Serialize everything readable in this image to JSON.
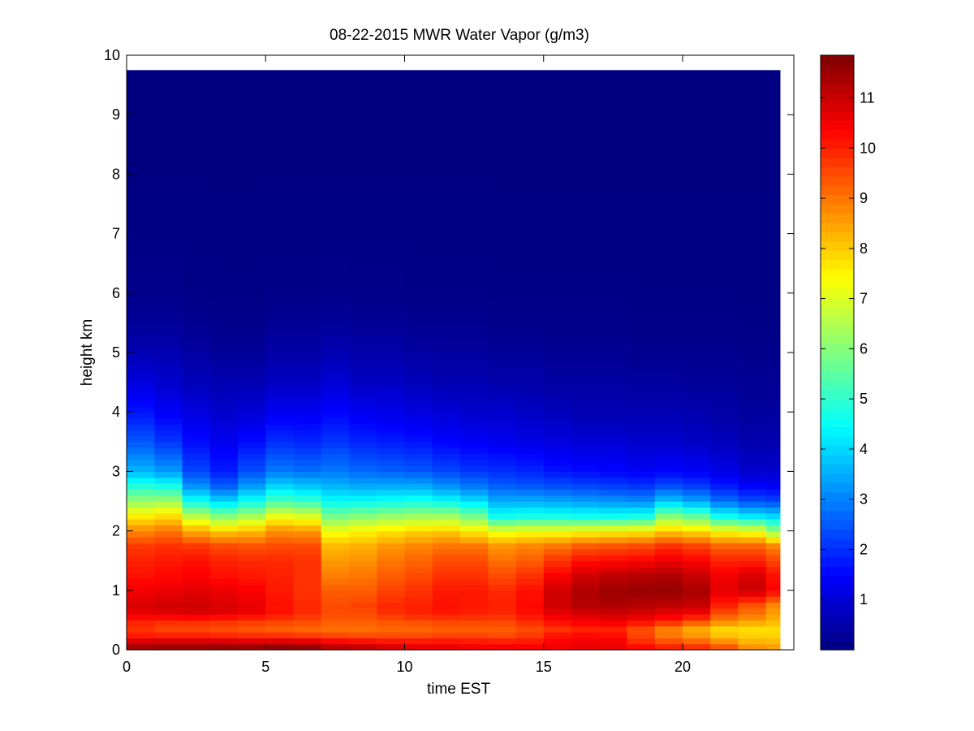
{
  "chart_data": {
    "type": "heatmap",
    "title": "08-22-2015 MWR Water Vapor (g/m3)",
    "xlabel": "time EST",
    "ylabel": "height km",
    "xlim": [
      0,
      24
    ],
    "ylim": [
      0,
      10
    ],
    "x_ticks": [
      "0",
      "5",
      "10",
      "15",
      "20"
    ],
    "y_ticks": [
      "0",
      "1",
      "2",
      "3",
      "4",
      "5",
      "6",
      "7",
      "8",
      "9",
      "10"
    ],
    "colorbar": {
      "colormap": "jet",
      "range": [
        0,
        11.85
      ],
      "ticks": [
        "1",
        "2",
        "3",
        "4",
        "5",
        "6",
        "7",
        "8",
        "9",
        "10",
        "11"
      ]
    },
    "data_extent": {
      "time": [
        0,
        23.5
      ],
      "height": [
        0,
        9.75
      ]
    },
    "time_hours": [
      0,
      1,
      2,
      3,
      4,
      5,
      6,
      7,
      8,
      9,
      10,
      11,
      12,
      13,
      14,
      15,
      16,
      17,
      18,
      19,
      20,
      21,
      22,
      23
    ],
    "profile_heights_km": [
      0,
      0.1,
      0.2,
      0.35,
      0.5,
      0.6,
      0.75,
      1.0,
      1.25,
      1.5,
      1.75,
      2.0,
      2.25,
      2.5,
      2.75,
      3.0,
      3.5,
      4.0,
      4.5,
      5.0,
      5.5,
      6.0,
      7.0,
      8.0,
      9.75
    ],
    "profiles_g_m3": [
      [
        11.5,
        11.3,
        10.2,
        9.8,
        10.0,
        10.6,
        10.8,
        10.5,
        10.2,
        10.0,
        9.7,
        8.8,
        7.6,
        6.2,
        4.9,
        3.6,
        2.5,
        1.7,
        1.1,
        0.6,
        0.3,
        0.15,
        0.05,
        0.02,
        0.0
      ],
      [
        11.6,
        11.4,
        10.2,
        9.6,
        9.9,
        10.7,
        10.9,
        10.6,
        10.3,
        10.1,
        9.8,
        9.0,
        7.8,
        6.3,
        4.7,
        3.3,
        2.1,
        1.4,
        0.9,
        0.6,
        0.3,
        0.15,
        0.05,
        0.02,
        0.0
      ],
      [
        11.6,
        11.4,
        10.2,
        9.6,
        9.9,
        10.8,
        10.9,
        10.7,
        10.4,
        10.2,
        9.7,
        8.4,
        6.6,
        4.6,
        3.2,
        2.3,
        1.6,
        1.1,
        0.7,
        0.4,
        0.2,
        0.1,
        0.05,
        0.02,
        0.0
      ],
      [
        11.7,
        11.4,
        10.1,
        9.5,
        9.8,
        10.7,
        10.8,
        10.6,
        10.2,
        10.0,
        9.5,
        8.0,
        6.0,
        4.0,
        2.6,
        1.8,
        1.3,
        0.9,
        0.6,
        0.3,
        0.15,
        0.08,
        0.04,
        0.02,
        0.0
      ],
      [
        11.7,
        11.3,
        10.0,
        9.4,
        9.7,
        10.5,
        10.6,
        10.4,
        10.1,
        9.9,
        9.4,
        8.2,
        6.4,
        4.6,
        3.3,
        2.4,
        1.6,
        1.0,
        0.6,
        0.3,
        0.15,
        0.08,
        0.04,
        0.02,
        0.0
      ],
      [
        11.8,
        11.4,
        10.0,
        9.3,
        9.6,
        10.2,
        10.2,
        10.1,
        10.0,
        9.9,
        9.5,
        8.7,
        7.2,
        5.3,
        4.0,
        2.9,
        2.0,
        1.3,
        0.8,
        0.45,
        0.25,
        0.1,
        0.05,
        0.02,
        0.0
      ],
      [
        11.8,
        11.3,
        9.9,
        9.2,
        9.5,
        9.9,
        9.9,
        9.8,
        9.8,
        9.8,
        9.5,
        8.6,
        7.0,
        5.1,
        3.8,
        2.8,
        1.9,
        1.3,
        0.8,
        0.45,
        0.25,
        0.1,
        0.05,
        0.02,
        0.0
      ],
      [
        11.4,
        10.9,
        9.7,
        9.1,
        9.3,
        9.5,
        9.5,
        9.3,
        8.9,
        8.6,
        8.2,
        7.3,
        5.8,
        4.5,
        3.6,
        2.9,
        2.1,
        1.5,
        1.0,
        0.6,
        0.3,
        0.15,
        0.05,
        0.02,
        0.0
      ],
      [
        11.2,
        10.8,
        9.6,
        9.1,
        9.3,
        9.5,
        9.6,
        9.3,
        9.0,
        8.7,
        8.3,
        7.5,
        6.0,
        4.5,
        3.5,
        2.7,
        1.9,
        1.3,
        0.8,
        0.5,
        0.25,
        0.12,
        0.05,
        0.02,
        0.0
      ],
      [
        10.9,
        10.6,
        9.6,
        9.2,
        9.4,
        9.8,
        9.9,
        9.6,
        9.3,
        9.0,
        8.6,
        7.7,
        6.2,
        4.6,
        3.5,
        2.6,
        1.8,
        1.2,
        0.8,
        0.5,
        0.25,
        0.12,
        0.05,
        0.02,
        0.0
      ],
      [
        10.7,
        10.5,
        9.6,
        9.2,
        9.5,
        10.0,
        10.0,
        9.8,
        9.5,
        9.2,
        8.8,
        7.9,
        6.3,
        4.7,
        3.5,
        2.5,
        1.7,
        1.1,
        0.7,
        0.4,
        0.2,
        0.1,
        0.05,
        0.02,
        0.0
      ],
      [
        10.6,
        10.5,
        9.7,
        9.3,
        9.6,
        10.1,
        10.2,
        10.1,
        9.8,
        9.5,
        9.0,
        8.0,
        6.3,
        4.5,
        3.2,
        2.3,
        1.5,
        1.0,
        0.6,
        0.35,
        0.2,
        0.1,
        0.05,
        0.02,
        0.0
      ],
      [
        10.6,
        10.4,
        9.7,
        9.3,
        9.6,
        10.0,
        10.1,
        10.1,
        9.8,
        9.5,
        9.0,
        7.6,
        5.8,
        4.1,
        2.9,
        2.1,
        1.4,
        0.9,
        0.6,
        0.35,
        0.2,
        0.1,
        0.05,
        0.02,
        0.0
      ],
      [
        10.5,
        10.4,
        9.6,
        9.3,
        9.6,
        9.9,
        10.0,
        9.9,
        9.5,
        9.1,
        8.6,
        7.2,
        4.6,
        3.5,
        2.6,
        2.0,
        1.3,
        0.9,
        0.5,
        0.3,
        0.15,
        0.08,
        0.04,
        0.02,
        0.0
      ],
      [
        10.5,
        10.3,
        9.8,
        9.5,
        9.9,
        10.2,
        10.3,
        10.2,
        9.8,
        9.3,
        8.8,
        7.3,
        4.7,
        3.5,
        2.5,
        1.9,
        1.2,
        0.8,
        0.5,
        0.3,
        0.15,
        0.08,
        0.04,
        0.02,
        0.0
      ],
      [
        10.6,
        10.4,
        10.3,
        9.8,
        10.3,
        10.6,
        10.9,
        10.9,
        10.4,
        9.8,
        9.0,
        7.3,
        4.7,
        3.4,
        2.4,
        1.7,
        1.1,
        0.7,
        0.4,
        0.25,
        0.15,
        0.08,
        0.04,
        0.02,
        0.0
      ],
      [
        10.7,
        10.5,
        10.4,
        10.0,
        10.5,
        10.8,
        11.2,
        11.3,
        10.9,
        10.2,
        9.3,
        7.4,
        4.6,
        3.3,
        2.3,
        1.6,
        1.0,
        0.6,
        0.4,
        0.25,
        0.15,
        0.08,
        0.04,
        0.02,
        0.0
      ],
      [
        10.7,
        10.5,
        10.3,
        10.0,
        10.6,
        10.9,
        11.3,
        11.5,
        11.1,
        10.3,
        9.4,
        7.5,
        4.6,
        3.2,
        2.2,
        1.5,
        1.0,
        0.6,
        0.4,
        0.25,
        0.15,
        0.08,
        0.04,
        0.02,
        0.0
      ],
      [
        10.4,
        10.1,
        9.6,
        9.5,
        10.4,
        10.8,
        11.2,
        11.6,
        11.2,
        10.4,
        9.5,
        7.6,
        4.7,
        3.1,
        2.1,
        1.4,
        0.9,
        0.6,
        0.35,
        0.2,
        0.1,
        0.06,
        0.03,
        0.02,
        0.0
      ],
      [
        10.1,
        9.8,
        9.0,
        8.9,
        10.1,
        10.6,
        11.1,
        11.6,
        11.3,
        10.6,
        9.8,
        8.0,
        6.0,
        3.8,
        2.4,
        1.5,
        0.9,
        0.6,
        0.35,
        0.2,
        0.1,
        0.06,
        0.03,
        0.02,
        0.0
      ],
      [
        10.0,
        9.6,
        8.7,
        8.4,
        9.6,
        10.4,
        11.0,
        11.4,
        11.0,
        10.4,
        9.6,
        7.8,
        5.6,
        3.4,
        2.2,
        1.4,
        0.8,
        0.55,
        0.3,
        0.2,
        0.1,
        0.06,
        0.03,
        0.02,
        0.0
      ],
      [
        9.6,
        9.1,
        8.2,
        7.9,
        8.9,
        9.4,
        10.0,
        10.7,
        10.5,
        10.0,
        9.2,
        7.4,
        4.6,
        2.8,
        1.8,
        1.2,
        0.7,
        0.45,
        0.3,
        0.2,
        0.1,
        0.06,
        0.03,
        0.02,
        0.0
      ],
      [
        8.8,
        8.5,
        8.0,
        7.8,
        8.6,
        9.0,
        9.4,
        11.0,
        10.8,
        10.0,
        9.2,
        7.2,
        4.2,
        2.4,
        1.5,
        0.9,
        0.55,
        0.35,
        0.25,
        0.15,
        0.08,
        0.05,
        0.03,
        0.02,
        0.0
      ],
      [
        8.6,
        8.4,
        8.0,
        7.8,
        8.3,
        8.5,
        8.8,
        10.4,
        10.2,
        9.6,
        8.8,
        6.2,
        4.0,
        2.3,
        1.4,
        0.9,
        0.55,
        0.35,
        0.25,
        0.15,
        0.08,
        0.05,
        0.03,
        0.02,
        0.0
      ]
    ]
  }
}
